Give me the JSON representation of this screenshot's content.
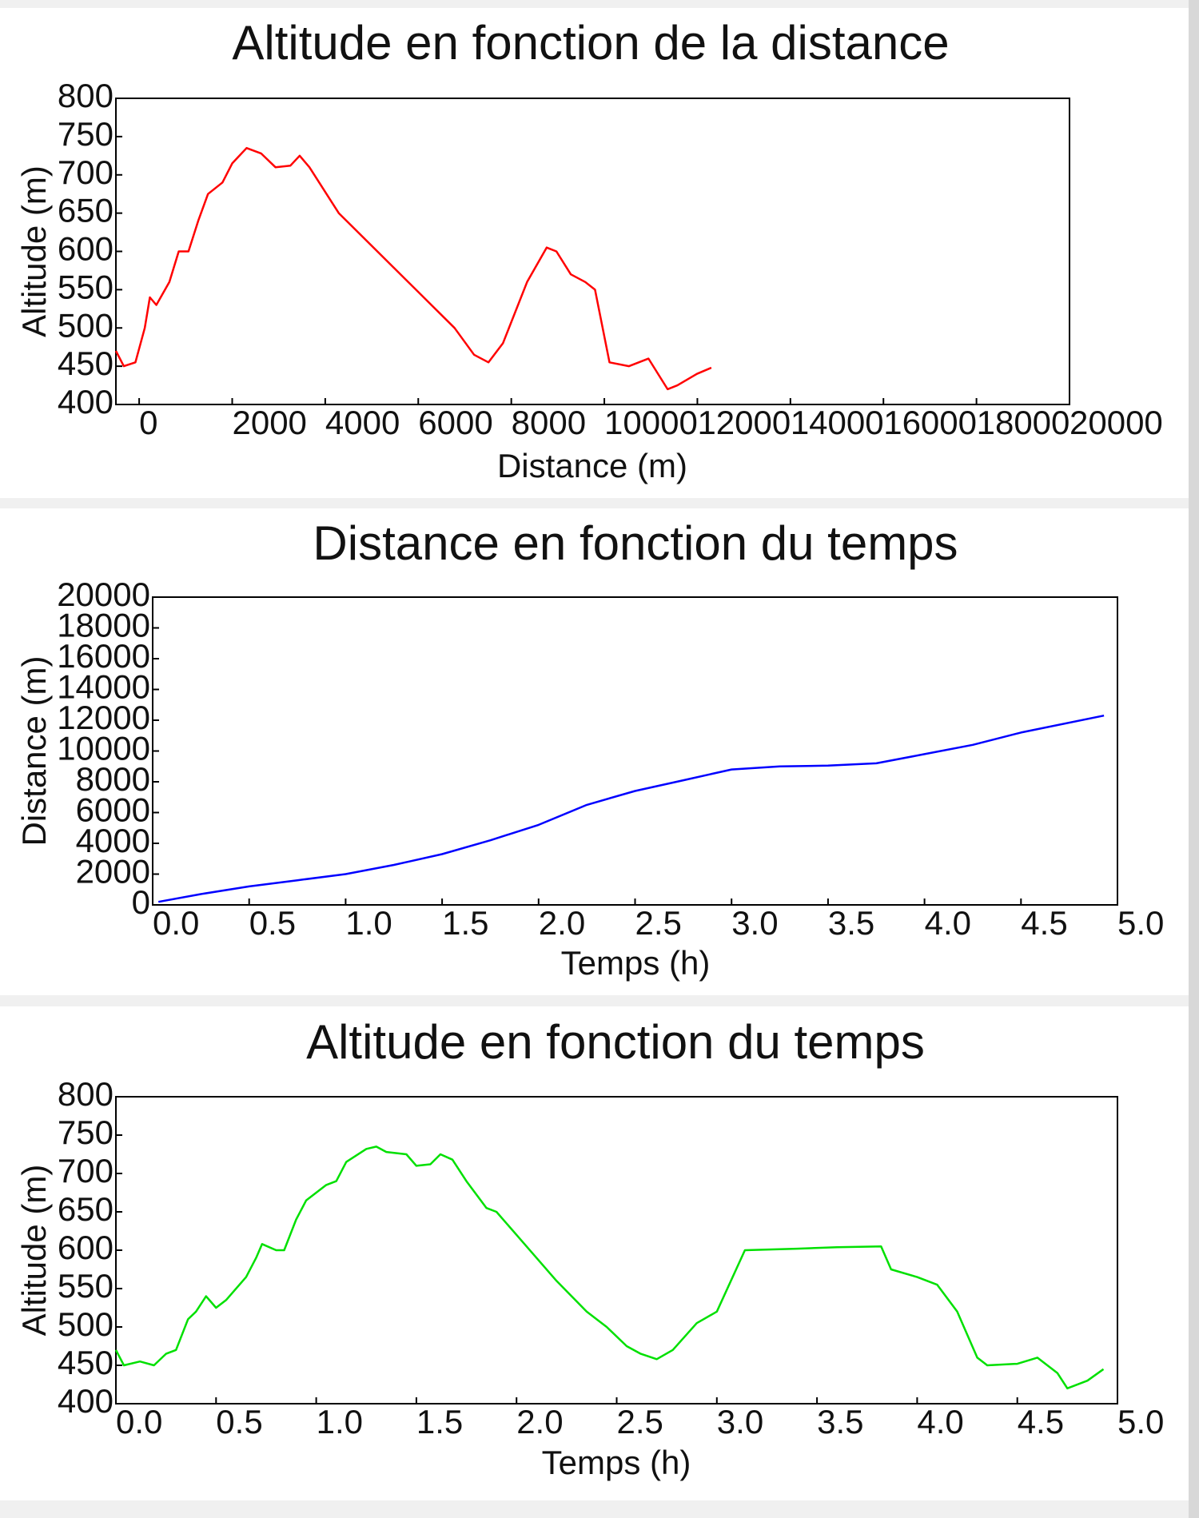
{
  "chart_data": [
    {
      "type": "line",
      "title": "Altitude en fonction de la distance",
      "xlabel": "Distance (m)",
      "ylabel": "Altitude (m)",
      "color": "#ff0000",
      "x": [
        -500,
        -330,
        -80,
        120,
        230,
        370,
        650,
        850,
        1060,
        1270,
        1480,
        1790,
        2000,
        2310,
        2620,
        2930,
        3250,
        3450,
        3660,
        4290,
        5120,
        5950,
        6780,
        7200,
        7510,
        7820,
        8340,
        8760,
        8970,
        9280,
        9590,
        9800,
        10110,
        10530,
        10950,
        11360,
        11570,
        11990,
        12300
      ],
      "values": [
        470,
        450,
        455,
        500,
        540,
        530,
        560,
        600,
        600,
        640,
        675,
        690,
        715,
        735,
        728,
        710,
        712,
        725,
        710,
        650,
        600,
        550,
        500,
        465,
        455,
        480,
        560,
        605,
        600,
        570,
        560,
        550,
        455,
        450,
        460,
        420,
        425,
        440,
        448
      ],
      "xlim": [
        -500,
        20000
      ],
      "xticks": [
        0,
        2000,
        4000,
        6000,
        8000,
        10000,
        12000,
        14000,
        16000,
        18000,
        20000
      ],
      "ylim": [
        400,
        800
      ],
      "yticks": [
        400,
        450,
        500,
        550,
        600,
        650,
        700,
        750,
        800
      ]
    },
    {
      "type": "line",
      "title": "Distance en fonction du temps",
      "xlabel": "Temps (h)",
      "ylabel": "Distance (m)",
      "color": "#0000ff",
      "x": [
        0.03,
        0.25,
        0.5,
        0.75,
        1.0,
        1.25,
        1.5,
        1.75,
        2.0,
        2.25,
        2.5,
        2.75,
        3.0,
        3.25,
        3.5,
        3.75,
        4.0,
        4.25,
        4.5,
        4.93
      ],
      "values": [
        200,
        700,
        1200,
        1600,
        2000,
        2600,
        3300,
        4200,
        5200,
        6500,
        7400,
        8100,
        8800,
        9000,
        9050,
        9200,
        9800,
        10400,
        11200,
        12300
      ],
      "xlim": [
        0,
        5
      ],
      "xticks": [
        {
          "value": 0,
          "label": "0.0"
        },
        0.5,
        {
          "value": 1,
          "label": "1.0"
        },
        1.5,
        {
          "value": 2,
          "label": "2.0"
        },
        2.5,
        {
          "value": 3,
          "label": "3.0"
        },
        3.5,
        {
          "value": 4,
          "label": "4.0"
        },
        4.5,
        {
          "value": 5,
          "label": "5.0"
        }
      ],
      "ylim": [
        0,
        20000
      ],
      "yticks": [
        0,
        2000,
        4000,
        6000,
        8000,
        10000,
        12000,
        14000,
        16000,
        18000,
        20000
      ]
    },
    {
      "type": "line",
      "title": "Altitude en fonction du temps",
      "xlabel": "Temps (h)",
      "ylabel": "Altitude (m)",
      "color": "#00e000",
      "x": [
        0.0,
        0.04,
        0.12,
        0.19,
        0.25,
        0.3,
        0.36,
        0.4,
        0.45,
        0.5,
        0.55,
        0.65,
        0.7,
        0.73,
        0.8,
        0.84,
        0.9,
        0.95,
        1.05,
        1.1,
        1.15,
        1.25,
        1.3,
        1.35,
        1.45,
        1.5,
        1.57,
        1.62,
        1.68,
        1.75,
        1.85,
        1.9,
        2.0,
        2.2,
        2.35,
        2.45,
        2.55,
        2.62,
        2.7,
        2.78,
        2.9,
        3.0,
        3.14,
        3.4,
        3.6,
        3.82,
        3.87,
        4.0,
        4.1,
        4.2,
        4.3,
        4.35,
        4.5,
        4.6,
        4.7,
        4.75,
        4.85,
        4.93
      ],
      "values": [
        470,
        450,
        455,
        450,
        465,
        470,
        510,
        520,
        540,
        525,
        535,
        565,
        590,
        608,
        600,
        600,
        640,
        665,
        685,
        690,
        715,
        732,
        735,
        728,
        725,
        710,
        712,
        725,
        718,
        690,
        655,
        650,
        620,
        560,
        520,
        500,
        475,
        465,
        458,
        470,
        505,
        520,
        600,
        602,
        604,
        605,
        575,
        565,
        555,
        520,
        460,
        450,
        452,
        460,
        440,
        420,
        430,
        445
      ],
      "xlim": [
        0,
        5
      ],
      "xticks": [
        {
          "value": 0,
          "label": "0.0"
        },
        0.5,
        {
          "value": 1,
          "label": "1.0"
        },
        1.5,
        {
          "value": 2,
          "label": "2.0"
        },
        2.5,
        {
          "value": 3,
          "label": "3.0"
        },
        3.5,
        {
          "value": 4,
          "label": "4.0"
        },
        4.5,
        {
          "value": 5,
          "label": "5.0"
        }
      ],
      "ylim": [
        400,
        800
      ],
      "yticks": [
        400,
        450,
        500,
        550,
        600,
        650,
        700,
        750,
        800
      ]
    }
  ]
}
